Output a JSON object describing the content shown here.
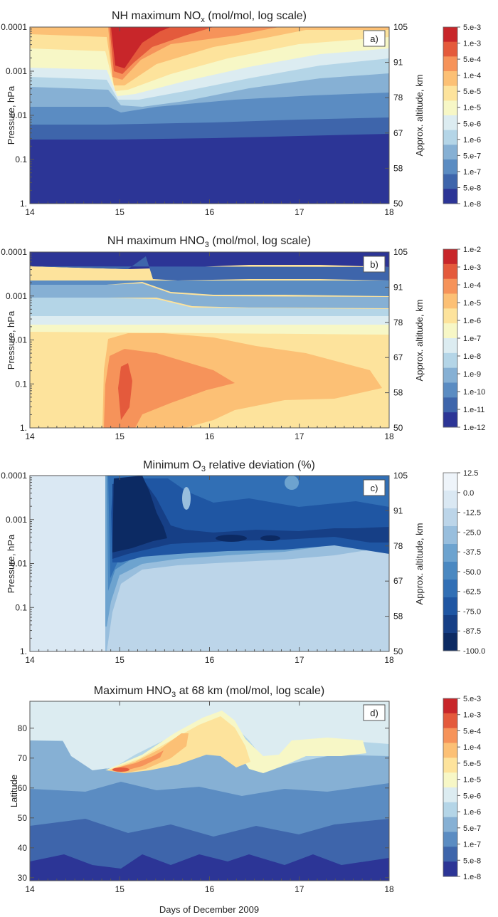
{
  "figure": {
    "xlabel": "Days of December 2009",
    "x_ticks": [
      "14",
      "15",
      "16",
      "17",
      "18"
    ]
  },
  "chart_data": [
    {
      "type": "heatmap",
      "panel_label": "a)",
      "title_parts": [
        "NH maximum NO",
        "x",
        " (mol/mol, log scale)"
      ],
      "xlabel": "",
      "ylabel": "Pressure, hPa",
      "y2label": "Approx. altitude, km",
      "xlim": [
        14,
        18
      ],
      "ylim_hPa": [
        1,
        0.0001
      ],
      "y_scale": "log",
      "y_ticks": [
        "0.0001",
        "0.001",
        "0.01",
        "0.1",
        "1."
      ],
      "y2_ticks": [
        "105",
        "91",
        "78",
        "67",
        "58",
        "50"
      ],
      "colorbar_ticks": [
        "5.e-3",
        "1.e-3",
        "5.e-4",
        "1.e-4",
        "5.e-5",
        "1.e-5",
        "5.e-6",
        "1.e-6",
        "5.e-7",
        "1.e-7",
        "5.e-8",
        "1.e-8"
      ],
      "colors": [
        "#2c3596",
        "#3e65ab",
        "#5b8cc2",
        "#86b0d4",
        "#b4d5e7",
        "#dcecf1",
        "#f7f7c6",
        "#fde39c",
        "#fcc075",
        "#f6935a",
        "#e45a3c",
        "#c8262a"
      ],
      "summary_levels_log10": [
        {
          "x": 14.0,
          "levels": [
            -7.2,
            -6.5,
            -6.0,
            -5.5,
            -5.0,
            -4.5,
            -4.2
          ]
        },
        {
          "x": 14.5,
          "levels": [
            -7.2,
            -6.5,
            -6.0,
            -5.5,
            -5.0,
            -4.5,
            -4.2
          ]
        },
        {
          "x": 14.6,
          "levels": [
            -7.2,
            -6.6,
            -5.9,
            -5.2,
            -4.4,
            -3.5,
            -2.5
          ]
        },
        {
          "x": 15.0,
          "levels": [
            -7.2,
            -6.6,
            -5.9,
            -5.2,
            -4.6,
            -4.0,
            -3.6
          ]
        },
        {
          "x": 16.0,
          "levels": [
            -7.2,
            -6.6,
            -6.0,
            -5.4,
            -4.8,
            -4.2,
            -3.9
          ]
        },
        {
          "x": 17.0,
          "levels": [
            -7.2,
            -6.6,
            -6.1,
            -5.6,
            -5.0,
            -4.4,
            -4.2
          ]
        },
        {
          "x": 18.0,
          "levels": [
            -7.2,
            -6.6,
            -6.2,
            -5.7,
            -5.2,
            -4.6,
            -4.3
          ]
        }
      ]
    },
    {
      "type": "heatmap",
      "panel_label": "b)",
      "title_parts": [
        "NH maximum HNO",
        "3",
        " (mol/mol, log scale)"
      ],
      "xlabel": "",
      "ylabel": "Pressure, hPa",
      "y2label": "Approx. altitude, km",
      "xlim": [
        14,
        18
      ],
      "ylim_hPa": [
        1,
        0.0001
      ],
      "y_scale": "log",
      "y_ticks": [
        "0.0001",
        "0.001",
        "0.01",
        "0.1",
        "1."
      ],
      "y2_ticks": [
        "105",
        "91",
        "78",
        "67",
        "58",
        "50"
      ],
      "colorbar_ticks": [
        "1.e-2",
        "1.e-3",
        "1.e-4",
        "1.e-5",
        "1.e-6",
        "1.e-7",
        "1.e-8",
        "1.e-9",
        "1.e-10",
        "1.e-11",
        "1.e-12"
      ],
      "colors": [
        "#2c3596",
        "#3e65ab",
        "#5b8cc2",
        "#86b0d4",
        "#b4d5e7",
        "#dcecf1",
        "#f7f7c6",
        "#fde39c",
        "#fcc075",
        "#f6935a",
        "#e45a3c",
        "#c8262a"
      ],
      "summary_levels_log10": [
        {
          "x": 14.0,
          "levels": [
            -6.0,
            -6.0,
            -6.5,
            -7.5,
            -8.5,
            -9.5,
            -10.5
          ]
        },
        {
          "x": 14.6,
          "levels": [
            -4.0,
            -4.5,
            -5.5,
            -7.2,
            -8.3,
            -9.5,
            -10.5
          ]
        },
        {
          "x": 15.5,
          "levels": [
            -4.5,
            -4.5,
            -5.5,
            -7.3,
            -8.5,
            -9.7,
            -10.7
          ]
        },
        {
          "x": 16.5,
          "levels": [
            -5.0,
            -5.0,
            -5.5,
            -7.5,
            -8.8,
            -10.0,
            -11.0
          ]
        },
        {
          "x": 18.0,
          "levels": [
            -5.5,
            -5.5,
            -6.0,
            -7.5,
            -8.8,
            -10.0,
            -11.0
          ]
        }
      ]
    },
    {
      "type": "heatmap",
      "panel_label": "c)",
      "title_parts": [
        "Minimum O",
        "3",
        " relative deviation (%)"
      ],
      "xlabel": "",
      "ylabel": "Pressure, hPa",
      "y2label": "Approx. altitude, km",
      "xlim": [
        14,
        18
      ],
      "ylim_hPa": [
        1,
        0.0001
      ],
      "y_scale": "log",
      "y_ticks": [
        "0.0001",
        "0.001",
        "0.01",
        "0.1",
        "1."
      ],
      "y2_ticks": [
        "105",
        "91",
        "78",
        "67",
        "58",
        "50"
      ],
      "colorbar_ticks": [
        "12.5",
        "0.0",
        "-12.5",
        "-25.0",
        "-37.5",
        "-50.0",
        "-62.5",
        "-75.0",
        "-87.5",
        "-100.0"
      ],
      "colors": [
        "#0c2a63",
        "#163f86",
        "#1f56a3",
        "#316fb5",
        "#4a88c1",
        "#6da3cf",
        "#98bedd",
        "#bcd5e9",
        "#dae8f3",
        "#eef4fa"
      ],
      "summary_levels_pct": [
        {
          "x": 14.0,
          "levels": [
            0,
            0,
            0,
            0,
            0,
            0,
            0
          ]
        },
        {
          "x": 14.8,
          "levels": [
            -5,
            -30,
            -70,
            -95,
            -100,
            -95,
            -90
          ]
        },
        {
          "x": 15.5,
          "levels": [
            -5,
            -15,
            -45,
            -80,
            -90,
            -70,
            -50
          ]
        },
        {
          "x": 16.5,
          "levels": [
            -5,
            -10,
            -35,
            -80,
            -90,
            -70,
            -60
          ]
        },
        {
          "x": 18.0,
          "levels": [
            -5,
            -10,
            -30,
            -75,
            -80,
            -65,
            -55
          ]
        }
      ]
    },
    {
      "type": "heatmap",
      "panel_label": "d)",
      "title_parts": [
        "Maximum HNO",
        "3",
        " at 68 km (mol/mol, log scale)"
      ],
      "xlabel": "Days of December 2009",
      "ylabel": "Latitude",
      "y2label": "",
      "xlim": [
        14,
        18
      ],
      "ylim": [
        29,
        89
      ],
      "y_scale": "linear",
      "y_ticks": [
        "30",
        "40",
        "50",
        "60",
        "70",
        "80"
      ],
      "colorbar_ticks": [
        "5.e-3",
        "1.e-3",
        "5.e-4",
        "1.e-4",
        "5.e-5",
        "1.e-5",
        "5.e-6",
        "1.e-6",
        "5.e-7",
        "1.e-7",
        "5.e-8",
        "1.e-8"
      ],
      "colors": [
        "#2c3596",
        "#3e65ab",
        "#5b8cc2",
        "#86b0d4",
        "#b4d5e7",
        "#dcecf1",
        "#f7f7c6",
        "#fde39c",
        "#fcc075",
        "#f6935a",
        "#e45a3c",
        "#c8262a"
      ],
      "summary_levels_log10": [
        {
          "x": 14.0,
          "levels_by_lat": [
            {
              "lat": 30,
              "v": -7.3
            },
            {
              "lat": 50,
              "v": -6.6
            },
            {
              "lat": 74,
              "v": -5.7
            },
            {
              "lat": 88,
              "v": -6.0
            }
          ]
        },
        {
          "x": 14.7,
          "levels_by_lat": [
            {
              "lat": 55,
              "v": -3.7
            },
            {
              "lat": 70,
              "v": -5.0
            }
          ]
        },
        {
          "x": 15.6,
          "levels_by_lat": [
            {
              "lat": 80,
              "v": -4.3
            },
            {
              "lat": 65,
              "v": -4.6
            }
          ]
        },
        {
          "x": 17.0,
          "levels_by_lat": [
            {
              "lat": 60,
              "v": -5.4
            },
            {
              "lat": 72,
              "v": -5.0
            }
          ]
        },
        {
          "x": 18.0,
          "levels_by_lat": [
            {
              "lat": 30,
              "v": -7.0
            },
            {
              "lat": 60,
              "v": -6.3
            },
            {
              "lat": 75,
              "v": -6.0
            }
          ]
        }
      ]
    }
  ]
}
